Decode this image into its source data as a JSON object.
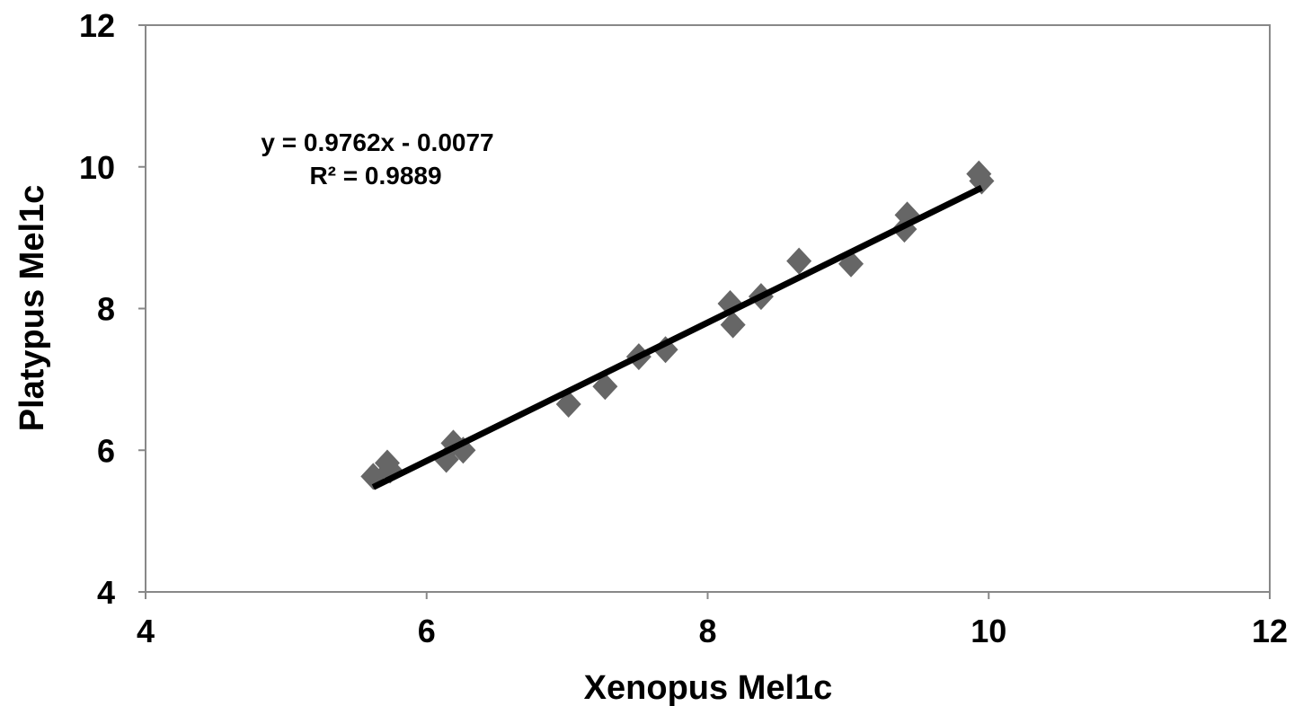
{
  "chart_data": {
    "type": "scatter",
    "xlabel": "Xenopus Mel1c",
    "ylabel": "Platypus Mel1c",
    "xlim": [
      4,
      12
    ],
    "ylim": [
      4,
      12
    ],
    "xticks": [
      "4",
      "6",
      "8",
      "10",
      "12"
    ],
    "yticks": [
      "4",
      "6",
      "8",
      "10",
      "12"
    ],
    "grid": false,
    "legend": "none",
    "series": [
      {
        "marker": "diamond",
        "color": "#666666",
        "points": [
          {
            "x": 5.62,
            "y": 5.63
          },
          {
            "x": 5.72,
            "y": 5.82
          },
          {
            "x": 5.74,
            "y": 5.72
          },
          {
            "x": 6.14,
            "y": 5.87
          },
          {
            "x": 6.19,
            "y": 6.1
          },
          {
            "x": 6.26,
            "y": 6.0
          },
          {
            "x": 7.01,
            "y": 6.65
          },
          {
            "x": 7.27,
            "y": 6.9
          },
          {
            "x": 7.51,
            "y": 7.32
          },
          {
            "x": 7.7,
            "y": 7.42
          },
          {
            "x": 8.16,
            "y": 8.07
          },
          {
            "x": 8.18,
            "y": 7.77
          },
          {
            "x": 8.38,
            "y": 8.17
          },
          {
            "x": 8.65,
            "y": 8.67
          },
          {
            "x": 9.02,
            "y": 8.63
          },
          {
            "x": 9.4,
            "y": 9.12
          },
          {
            "x": 9.42,
            "y": 9.32
          },
          {
            "x": 9.93,
            "y": 9.9
          },
          {
            "x": 9.95,
            "y": 9.8
          }
        ]
      }
    ],
    "trendline": {
      "slope": 0.9762,
      "intercept": -0.0077,
      "x_range": [
        5.62,
        9.95
      ],
      "color": "#000000"
    },
    "annotations": {
      "equation": "y = 0.9762x - 0.0077",
      "r_squared": "R² = 0.9889"
    }
  }
}
